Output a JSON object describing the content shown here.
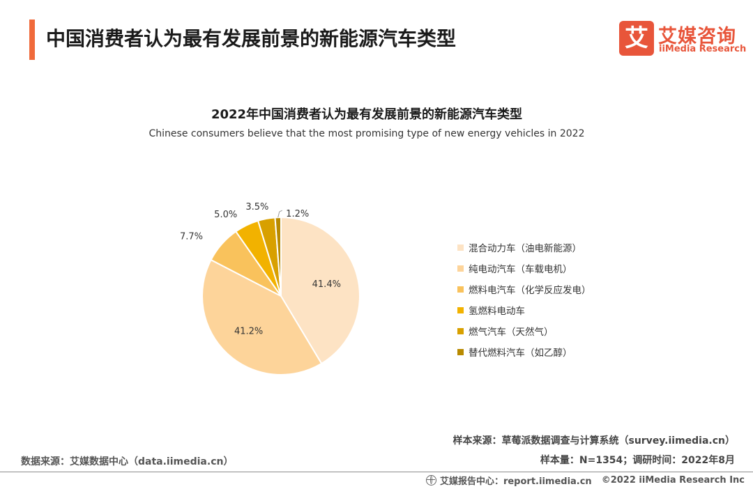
{
  "header": {
    "title": "中国消费者认为最有发展前景的新能源汽车类型",
    "accent_color": "#f06a3b"
  },
  "brand": {
    "mark": "艾",
    "name_cn": "艾媒咨询",
    "name_en": "iiMedia Research",
    "color": "#e8553a"
  },
  "chart_data": {
    "type": "pie",
    "title": "2022年中国消费者认为最有发展前景的新能源汽车类型",
    "subtitle": "Chinese consumers believe that the most promising type of new energy vehicles in 2022",
    "unit": "%",
    "categories": [
      "混合动力车（油电新能源）",
      "纯电动汽车（车载电机）",
      "燃料电汽车（化学反应发电）",
      "氢燃料电动车",
      "燃气汽车（天然气）",
      "替代燃料汽车（如乙醇）"
    ],
    "values": [
      41.4,
      41.2,
      7.7,
      5.0,
      3.5,
      1.2
    ],
    "labels": [
      "41.4%",
      "41.2%",
      "7.7%",
      "5.0%",
      "3.5%",
      "1.2%"
    ],
    "colors": [
      "#fde3c4",
      "#fdd49a",
      "#f9c25c",
      "#f2b200",
      "#d8a000",
      "#b88a00"
    ],
    "start_angle_deg": 0,
    "direction": "clockwise",
    "legend_position": "right"
  },
  "footer": {
    "sample_source": "样本来源：草莓派数据调查与计算系统（survey.iimedia.cn）",
    "data_source": "数据来源：艾媒数据中心（data.iimedia.cn）",
    "sample_info": "样本量：N=1354；调研时间：2022年8月",
    "report_center": "艾媒报告中心：report.iimedia.cn",
    "copyright": "©2022  iiMedia Research  Inc"
  }
}
